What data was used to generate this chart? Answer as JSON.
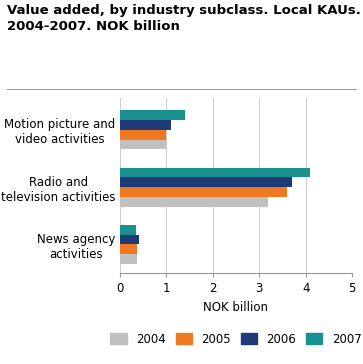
{
  "title": "Value added, by industry subclass. Local KAUs.\n2004-2007. NOK billion",
  "categories": [
    "Motion picture and\nvideo activities",
    "Radio and\ntelevision activities",
    "News agency\nactivities"
  ],
  "years": [
    "2004",
    "2005",
    "2006",
    "2007"
  ],
  "values": {
    "Motion picture and\nvideo activities": [
      1.0,
      1.0,
      1.1,
      1.4
    ],
    "Radio and\ntelevision activities": [
      3.2,
      3.6,
      3.7,
      4.1
    ],
    "News agency\nactivities": [
      0.38,
      0.38,
      0.42,
      0.35
    ]
  },
  "colors": {
    "2004": "#c0c0c0",
    "2005": "#f07820",
    "2006": "#1e3a78",
    "2007": "#1a9090"
  },
  "xlabel": "NOK billion",
  "xlim": [
    0,
    5
  ],
  "xticks": [
    0,
    1,
    2,
    3,
    4,
    5
  ],
  "background_color": "#ffffff",
  "grid_color": "#cccccc",
  "title_fontsize": 9.5,
  "label_fontsize": 8.5,
  "legend_fontsize": 8.5
}
